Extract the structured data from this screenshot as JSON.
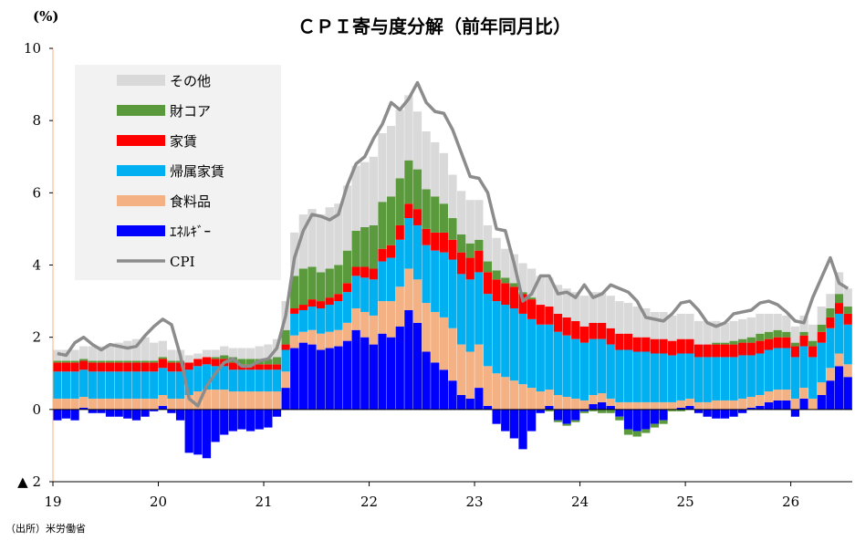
{
  "chart_data": {
    "type": "bar",
    "stacked": true,
    "title": "ＣＰＩ寄与度分解（前年同月比）",
    "ylabel": "(%)",
    "ylim": [
      -2,
      10
    ],
    "yticks": [
      10,
      8,
      6,
      4,
      2,
      0,
      -2
    ],
    "ytick_labels": [
      "10",
      "8",
      "6",
      "4",
      "2",
      "0",
      "▲ 2"
    ],
    "x_start": "2019-01",
    "x_end": "2026-07",
    "xtick_labels": [
      "19",
      "20",
      "21",
      "22",
      "23",
      "24",
      "25",
      "26"
    ],
    "legend_position": "top-left",
    "grid": false,
    "source": "（出所）米労働省",
    "series": [
      {
        "name": "その他",
        "kind": "bar",
        "color": "#d9d9d9",
        "values": [
          0.3,
          0.3,
          0.3,
          0.35,
          0.4,
          0.4,
          0.45,
          0.5,
          0.55,
          0.6,
          0.65,
          0.5,
          0.45,
          0.3,
          0.3,
          0.2,
          0.15,
          0.2,
          0.2,
          0.25,
          0.25,
          0.3,
          0.3,
          0.35,
          0.4,
          0.5,
          0.8,
          1.2,
          1.5,
          1.6,
          1.6,
          1.7,
          1.7,
          1.8,
          1.8,
          1.8,
          1.9,
          1.9,
          1.95,
          1.9,
          1.8,
          1.6,
          1.6,
          1.5,
          1.4,
          1.2,
          1.2,
          1.2,
          1.1,
          1.0,
          0.9,
          0.8,
          0.8,
          0.8,
          0.8,
          0.8,
          0.8,
          0.8,
          0.8,
          0.8,
          0.85,
          0.85,
          0.85,
          0.9,
          0.9,
          0.85,
          0.85,
          0.8,
          0.75,
          0.75,
          0.7,
          0.7,
          0.7,
          0.65,
          0.65,
          0.6,
          0.55,
          0.55,
          0.55,
          0.55,
          0.55,
          0.5,
          0.45,
          0.45,
          0.45,
          0.45,
          0.45,
          0.5,
          0.4,
          0.6,
          0.5
        ]
      },
      {
        "name": "財コア",
        "kind": "bar",
        "color": "#5a9a3c",
        "values": [
          0.05,
          0.05,
          0.05,
          0.05,
          0.05,
          0.05,
          0.05,
          0.05,
          0.05,
          0.05,
          0.05,
          0.05,
          0.05,
          0.05,
          0.05,
          0.0,
          0.0,
          0.0,
          0.05,
          0.1,
          0.15,
          0.15,
          0.15,
          0.15,
          0.15,
          0.2,
          0.4,
          0.9,
          1.0,
          0.9,
          0.8,
          0.8,
          0.8,
          0.9,
          1.0,
          1.1,
          1.2,
          1.3,
          1.35,
          1.3,
          1.2,
          1.1,
          1.1,
          1.0,
          0.8,
          0.6,
          0.5,
          0.4,
          0.3,
          0.3,
          0.25,
          0.15,
          0.1,
          0.05,
          0.05,
          0.0,
          -0.05,
          -0.05,
          -0.05,
          -0.05,
          -0.05,
          -0.05,
          -0.1,
          -0.1,
          -0.1,
          -0.15,
          -0.15,
          -0.1,
          -0.1,
          -0.1,
          -0.05,
          -0.05,
          0.0,
          0.0,
          0.0,
          0.05,
          0.05,
          0.1,
          0.1,
          0.15,
          0.2,
          0.2,
          0.2,
          0.15,
          0.1,
          0.1,
          0.15,
          0.2,
          0.25,
          0.25,
          0.2
        ]
      },
      {
        "name": "家賃",
        "kind": "bar",
        "color": "#ff0000",
        "values": [
          0.25,
          0.25,
          0.25,
          0.25,
          0.25,
          0.25,
          0.25,
          0.25,
          0.25,
          0.25,
          0.25,
          0.25,
          0.25,
          0.25,
          0.25,
          0.2,
          0.2,
          0.2,
          0.2,
          0.2,
          0.2,
          0.15,
          0.15,
          0.15,
          0.15,
          0.15,
          0.15,
          0.15,
          0.15,
          0.2,
          0.2,
          0.2,
          0.2,
          0.25,
          0.25,
          0.3,
          0.3,
          0.35,
          0.35,
          0.4,
          0.4,
          0.45,
          0.45,
          0.5,
          0.55,
          0.55,
          0.6,
          0.6,
          0.6,
          0.6,
          0.6,
          0.6,
          0.6,
          0.55,
          0.55,
          0.55,
          0.5,
          0.5,
          0.5,
          0.5,
          0.45,
          0.45,
          0.45,
          0.45,
          0.45,
          0.45,
          0.4,
          0.4,
          0.4,
          0.4,
          0.4,
          0.4,
          0.4,
          0.35,
          0.35,
          0.35,
          0.35,
          0.35,
          0.35,
          0.35,
          0.35,
          0.3,
          0.3,
          0.3,
          0.3,
          0.3,
          0.3,
          0.3,
          0.3,
          0.3,
          0.3
        ]
      },
      {
        "name": "帰属家賃",
        "kind": "bar",
        "color": "#00b0f0",
        "values": [
          0.75,
          0.75,
          0.75,
          0.75,
          0.75,
          0.75,
          0.75,
          0.75,
          0.75,
          0.75,
          0.75,
          0.75,
          0.75,
          0.75,
          0.75,
          0.7,
          0.7,
          0.7,
          0.65,
          0.65,
          0.6,
          0.6,
          0.6,
          0.6,
          0.6,
          0.6,
          0.6,
          0.6,
          0.6,
          0.65,
          0.7,
          0.75,
          0.8,
          0.85,
          0.9,
          0.95,
          1.0,
          1.1,
          1.2,
          1.3,
          1.4,
          1.5,
          1.6,
          1.7,
          1.8,
          1.9,
          1.95,
          2.0,
          2.0,
          2.0,
          2.0,
          2.0,
          2.0,
          1.95,
          1.9,
          1.85,
          1.8,
          1.75,
          1.7,
          1.65,
          1.6,
          1.55,
          1.5,
          1.5,
          1.45,
          1.45,
          1.4,
          1.4,
          1.35,
          1.35,
          1.3,
          1.3,
          1.25,
          1.25,
          1.25,
          1.2,
          1.2,
          1.2,
          1.2,
          1.15,
          1.15,
          1.15,
          1.15,
          1.15,
          1.15,
          1.15,
          1.15,
          1.1,
          1.1,
          1.1,
          1.1
        ]
      },
      {
        "name": "食料品",
        "kind": "bar",
        "color": "#f4b183",
        "values": [
          0.3,
          0.3,
          0.3,
          0.3,
          0.3,
          0.3,
          0.3,
          0.3,
          0.3,
          0.3,
          0.3,
          0.3,
          0.3,
          0.3,
          0.3,
          0.4,
          0.5,
          0.55,
          0.55,
          0.55,
          0.5,
          0.5,
          0.5,
          0.5,
          0.5,
          0.5,
          0.45,
          0.35,
          0.3,
          0.4,
          0.45,
          0.45,
          0.45,
          0.5,
          0.6,
          0.7,
          0.8,
          0.9,
          1.0,
          1.1,
          1.15,
          1.2,
          1.35,
          1.4,
          1.45,
          1.45,
          1.4,
          1.3,
          1.2,
          1.1,
          1.0,
          0.9,
          0.8,
          0.7,
          0.6,
          0.5,
          0.45,
          0.4,
          0.35,
          0.3,
          0.25,
          0.25,
          0.25,
          0.2,
          0.2,
          0.2,
          0.2,
          0.2,
          0.2,
          0.2,
          0.2,
          0.2,
          0.2,
          0.2,
          0.2,
          0.25,
          0.25,
          0.25,
          0.3,
          0.3,
          0.3,
          0.3,
          0.3,
          0.3,
          0.3,
          0.3,
          0.3,
          0.35,
          0.35,
          0.35,
          0.35
        ]
      },
      {
        "name": "ｴﾈﾙｷﾞｰ",
        "kind": "bar",
        "color": "#0000ff",
        "values": [
          -0.3,
          -0.25,
          -0.3,
          0.05,
          -0.1,
          -0.1,
          -0.2,
          -0.2,
          -0.25,
          -0.3,
          -0.2,
          -0.05,
          0.1,
          -0.1,
          -0.3,
          -1.2,
          -1.25,
          -1.35,
          -0.9,
          -0.7,
          -0.6,
          -0.55,
          -0.6,
          -0.55,
          -0.5,
          -0.2,
          0.6,
          1.7,
          1.85,
          1.8,
          1.65,
          1.7,
          1.75,
          1.9,
          2.2,
          2.0,
          1.8,
          2.1,
          2.0,
          2.3,
          2.75,
          2.4,
          1.6,
          1.3,
          1.1,
          0.8,
          0.4,
          0.3,
          0.6,
          0.1,
          -0.4,
          -0.6,
          -0.8,
          -1.1,
          -0.6,
          -0.1,
          0.1,
          -0.3,
          -0.4,
          -0.3,
          -0.05,
          0.15,
          0.2,
          0.1,
          -0.2,
          -0.55,
          -0.6,
          -0.55,
          -0.4,
          -0.3,
          0.0,
          0.05,
          0.1,
          -0.1,
          -0.2,
          -0.25,
          -0.25,
          -0.2,
          -0.1,
          0.05,
          0.1,
          0.2,
          0.25,
          0.25,
          -0.2,
          0.3,
          0.0,
          0.4,
          0.8,
          1.2,
          0.9
        ]
      },
      {
        "name": "CPI",
        "kind": "line",
        "color": "#8c8c8c",
        "values": [
          1.55,
          1.5,
          1.85,
          2.0,
          1.8,
          1.65,
          1.8,
          1.75,
          1.7,
          1.75,
          2.05,
          2.3,
          2.5,
          2.35,
          1.5,
          0.3,
          0.1,
          0.65,
          1.0,
          1.3,
          1.4,
          1.2,
          1.2,
          1.35,
          1.4,
          1.7,
          2.6,
          4.2,
          4.95,
          5.4,
          5.35,
          5.25,
          5.4,
          6.2,
          6.8,
          7.0,
          7.5,
          7.9,
          8.5,
          8.3,
          8.6,
          9.05,
          8.5,
          8.25,
          8.2,
          7.75,
          7.1,
          6.45,
          6.4,
          6.0,
          5.0,
          4.95,
          4.05,
          3.0,
          3.2,
          3.7,
          3.7,
          3.2,
          3.25,
          3.1,
          3.45,
          3.1,
          3.2,
          3.45,
          3.35,
          3.25,
          3.0,
          2.55,
          2.5,
          2.45,
          2.65,
          2.95,
          3.0,
          2.75,
          2.4,
          2.3,
          2.4,
          2.65,
          2.7,
          2.75,
          2.95,
          3.0,
          2.9,
          2.7,
          2.45,
          2.4,
          3.1,
          3.65,
          4.2,
          3.5,
          3.35
        ]
      }
    ]
  }
}
